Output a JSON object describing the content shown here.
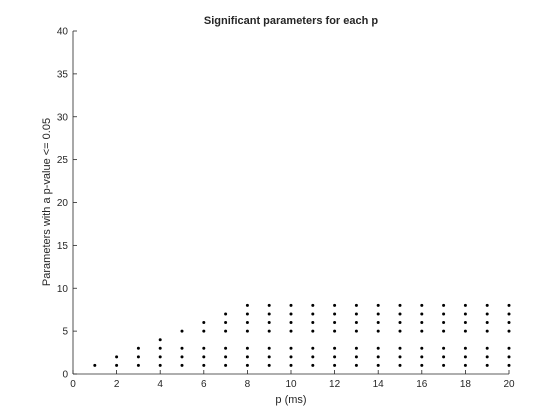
{
  "chart_data": {
    "type": "scatter",
    "title": "Significant parameters for each p",
    "xlabel": "p (ms)",
    "ylabel": "Parameters with a p-value <= 0.05",
    "xlim": [
      0,
      20
    ],
    "ylim": [
      0,
      40
    ],
    "xticks": [
      "0",
      "2",
      "4",
      "6",
      "8",
      "10",
      "12",
      "14",
      "16",
      "18",
      "20"
    ],
    "yticks": [
      "0",
      "5",
      "10",
      "15",
      "20",
      "25",
      "30",
      "35",
      "40"
    ],
    "grid": false,
    "legend": "none",
    "marker_color": "#000000",
    "points": [
      {
        "x": 1,
        "y": 1
      },
      {
        "x": 2,
        "y": 1
      },
      {
        "x": 2,
        "y": 2
      },
      {
        "x": 3,
        "y": 1
      },
      {
        "x": 3,
        "y": 2
      },
      {
        "x": 3,
        "y": 3
      },
      {
        "x": 4,
        "y": 1
      },
      {
        "x": 4,
        "y": 2
      },
      {
        "x": 4,
        "y": 3
      },
      {
        "x": 4,
        "y": 4
      },
      {
        "x": 5,
        "y": 1
      },
      {
        "x": 5,
        "y": 2
      },
      {
        "x": 5,
        "y": 3
      },
      {
        "x": 5,
        "y": 5
      },
      {
        "x": 6,
        "y": 1
      },
      {
        "x": 6,
        "y": 2
      },
      {
        "x": 6,
        "y": 3
      },
      {
        "x": 6,
        "y": 5
      },
      {
        "x": 6,
        "y": 6
      },
      {
        "x": 7,
        "y": 1
      },
      {
        "x": 7,
        "y": 2
      },
      {
        "x": 7,
        "y": 3
      },
      {
        "x": 7,
        "y": 5
      },
      {
        "x": 7,
        "y": 6
      },
      {
        "x": 7,
        "y": 7
      },
      {
        "x": 8,
        "y": 1
      },
      {
        "x": 8,
        "y": 2
      },
      {
        "x": 8,
        "y": 3
      },
      {
        "x": 8,
        "y": 5
      },
      {
        "x": 8,
        "y": 6
      },
      {
        "x": 8,
        "y": 7
      },
      {
        "x": 8,
        "y": 8
      },
      {
        "x": 9,
        "y": 1
      },
      {
        "x": 9,
        "y": 2
      },
      {
        "x": 9,
        "y": 3
      },
      {
        "x": 9,
        "y": 5
      },
      {
        "x": 9,
        "y": 6
      },
      {
        "x": 9,
        "y": 7
      },
      {
        "x": 9,
        "y": 8
      },
      {
        "x": 10,
        "y": 1
      },
      {
        "x": 10,
        "y": 2
      },
      {
        "x": 10,
        "y": 3
      },
      {
        "x": 10,
        "y": 5
      },
      {
        "x": 10,
        "y": 6
      },
      {
        "x": 10,
        "y": 7
      },
      {
        "x": 10,
        "y": 8
      },
      {
        "x": 11,
        "y": 1
      },
      {
        "x": 11,
        "y": 2
      },
      {
        "x": 11,
        "y": 3
      },
      {
        "x": 11,
        "y": 5
      },
      {
        "x": 11,
        "y": 6
      },
      {
        "x": 11,
        "y": 7
      },
      {
        "x": 11,
        "y": 8
      },
      {
        "x": 12,
        "y": 1
      },
      {
        "x": 12,
        "y": 2
      },
      {
        "x": 12,
        "y": 3
      },
      {
        "x": 12,
        "y": 5
      },
      {
        "x": 12,
        "y": 6
      },
      {
        "x": 12,
        "y": 7
      },
      {
        "x": 12,
        "y": 8
      },
      {
        "x": 13,
        "y": 1
      },
      {
        "x": 13,
        "y": 2
      },
      {
        "x": 13,
        "y": 3
      },
      {
        "x": 13,
        "y": 5
      },
      {
        "x": 13,
        "y": 6
      },
      {
        "x": 13,
        "y": 7
      },
      {
        "x": 13,
        "y": 8
      },
      {
        "x": 14,
        "y": 1
      },
      {
        "x": 14,
        "y": 2
      },
      {
        "x": 14,
        "y": 3
      },
      {
        "x": 14,
        "y": 5
      },
      {
        "x": 14,
        "y": 6
      },
      {
        "x": 14,
        "y": 7
      },
      {
        "x": 14,
        "y": 8
      },
      {
        "x": 15,
        "y": 1
      },
      {
        "x": 15,
        "y": 2
      },
      {
        "x": 15,
        "y": 3
      },
      {
        "x": 15,
        "y": 5
      },
      {
        "x": 15,
        "y": 6
      },
      {
        "x": 15,
        "y": 7
      },
      {
        "x": 15,
        "y": 8
      },
      {
        "x": 16,
        "y": 1
      },
      {
        "x": 16,
        "y": 2
      },
      {
        "x": 16,
        "y": 3
      },
      {
        "x": 16,
        "y": 5
      },
      {
        "x": 16,
        "y": 6
      },
      {
        "x": 16,
        "y": 7
      },
      {
        "x": 16,
        "y": 8
      },
      {
        "x": 17,
        "y": 1
      },
      {
        "x": 17,
        "y": 2
      },
      {
        "x": 17,
        "y": 3
      },
      {
        "x": 17,
        "y": 5
      },
      {
        "x": 17,
        "y": 6
      },
      {
        "x": 17,
        "y": 7
      },
      {
        "x": 17,
        "y": 8
      },
      {
        "x": 18,
        "y": 1
      },
      {
        "x": 18,
        "y": 2
      },
      {
        "x": 18,
        "y": 3
      },
      {
        "x": 18,
        "y": 5
      },
      {
        "x": 18,
        "y": 6
      },
      {
        "x": 18,
        "y": 7
      },
      {
        "x": 18,
        "y": 8
      },
      {
        "x": 19,
        "y": 1
      },
      {
        "x": 19,
        "y": 2
      },
      {
        "x": 19,
        "y": 3
      },
      {
        "x": 19,
        "y": 5
      },
      {
        "x": 19,
        "y": 6
      },
      {
        "x": 19,
        "y": 7
      },
      {
        "x": 19,
        "y": 8
      },
      {
        "x": 20,
        "y": 1
      },
      {
        "x": 20,
        "y": 2
      },
      {
        "x": 20,
        "y": 3
      },
      {
        "x": 20,
        "y": 5
      },
      {
        "x": 20,
        "y": 6
      },
      {
        "x": 20,
        "y": 7
      },
      {
        "x": 20,
        "y": 8
      }
    ]
  }
}
